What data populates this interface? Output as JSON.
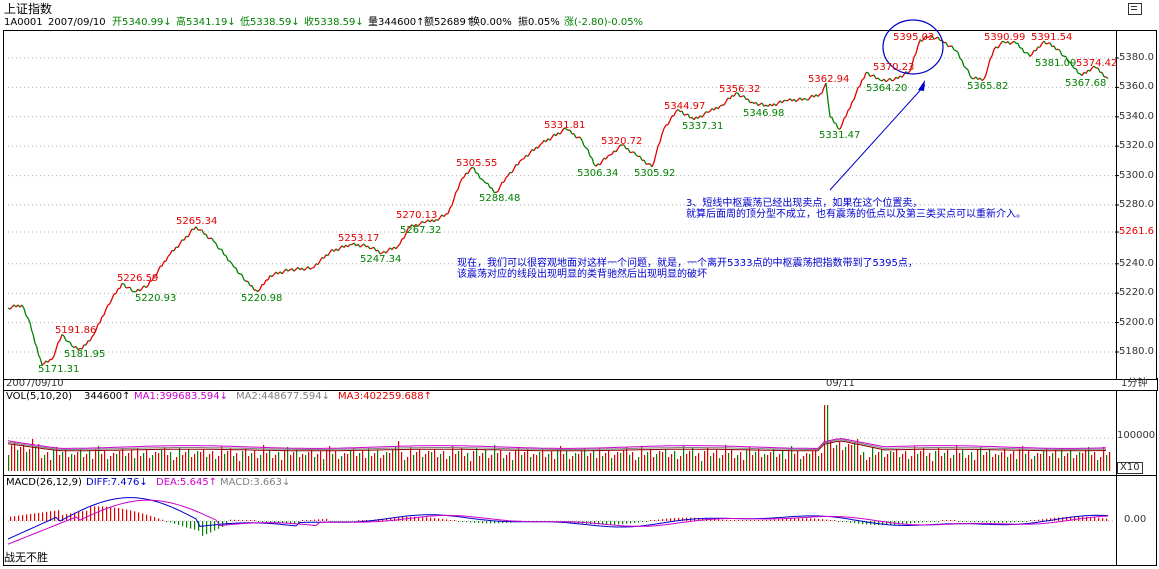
{
  "app": {
    "title": "上证指数",
    "window_icon": "restore-icon"
  },
  "info_bar": {
    "code": "1A0001",
    "date": "2007/09/10",
    "open": "开5340.99↓",
    "high": "高5341.19↓",
    "low": "低5338.59↓",
    "close": "收5338.59↓",
    "volume": "量344600↑",
    "amount": "额52689↑",
    "turnover": "换0.00%",
    "amplitude": "振0.05%",
    "change": "涨(-2.80)-0.05%"
  },
  "price_axis": {
    "ticks": [
      "5380.0",
      "5360.0",
      "5340.0",
      "5320.0",
      "5300.0",
      "5280.0",
      "5261.6",
      "5240.0",
      "5220.0",
      "5200.0",
      "5180.0"
    ]
  },
  "time_axis": {
    "left_date": "2007/09/10",
    "mid_date": "09/11",
    "period": "1分钟"
  },
  "annotations_red": [
    "5395.02",
    "5390.99",
    "5391.54",
    "5374.42",
    "5370.23",
    "5362.94",
    "5356.32",
    "5344.97",
    "5331.81",
    "5320.72",
    "5305.55",
    "5270.13",
    "5253.17",
    "5265.34",
    "5226.59",
    "5191.86"
  ],
  "annotations_green": [
    "5381.09",
    "5365.82",
    "5367.68",
    "5364.20",
    "5346.98",
    "5337.31",
    "5331.47",
    "5306.34",
    "5305.92",
    "5288.48",
    "5267.32",
    "5247.34",
    "5220.93",
    "5220.98",
    "5181.95",
    "5171.31"
  ],
  "notes": {
    "note3_line1": "3、短线中枢震荡已经出现卖点，如果在这个位置卖，",
    "note3_line2": "就算后面周的顶分型不成立，也有震荡的低点以及第三类买点可以重新介入。",
    "note_main_line1": "现在，我们可以很容观地面对这样一个问题，就是，一个离开5333点的中枢震荡把指数带到了5395点，",
    "note_main_line2": "该震荡对应的线段出现明显的类背驰然后出现明显的破坏"
  },
  "volume_panel": {
    "label": "VOL(5,10,20)",
    "value": "344600↑",
    "ma1": "MA1:399683.594↓",
    "ma2": "MA2:448677.594↓",
    "ma3": "MA3:402259.688↑",
    "tick": "100000",
    "scale": "X10"
  },
  "macd_panel": {
    "label": "MACD(26,12,9)",
    "diff": "DIFF:7.476↓",
    "dea": "DEA:5.645↑",
    "macd": "MACD:3.663↓",
    "tick": "0.00"
  },
  "footer": {
    "watermark": "战无不胜"
  },
  "colors": {
    "up": "#e00000",
    "down": "#008000",
    "note": "#0000cc",
    "ma_magenta": "#cc00cc"
  }
}
